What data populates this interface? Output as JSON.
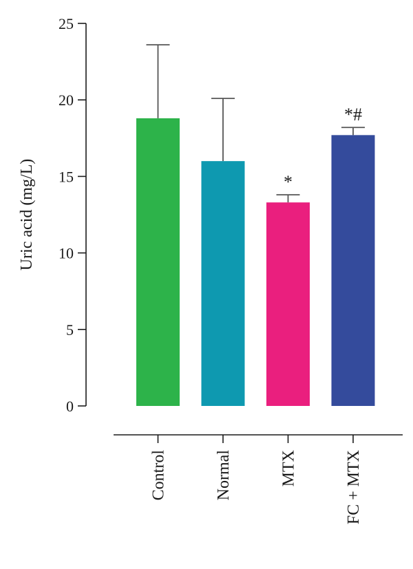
{
  "chart_data": {
    "type": "bar",
    "title": "",
    "xlabel": "",
    "ylabel": "Uric acid (mg/L)",
    "ylim": [
      0,
      25
    ],
    "yticks": [
      0,
      5,
      10,
      15,
      20,
      25
    ],
    "grid": false,
    "categories": [
      "Control",
      "Normal",
      "MTX",
      "FC + MTX"
    ],
    "values": [
      18.8,
      16.0,
      13.3,
      17.7
    ],
    "error_upper": [
      4.8,
      4.1,
      0.5,
      0.5
    ],
    "annotations": [
      "",
      "",
      "*",
      "*#"
    ],
    "colors": [
      "#2db34a",
      "#0e99b0",
      "#ea1f7e",
      "#344b9c"
    ]
  }
}
